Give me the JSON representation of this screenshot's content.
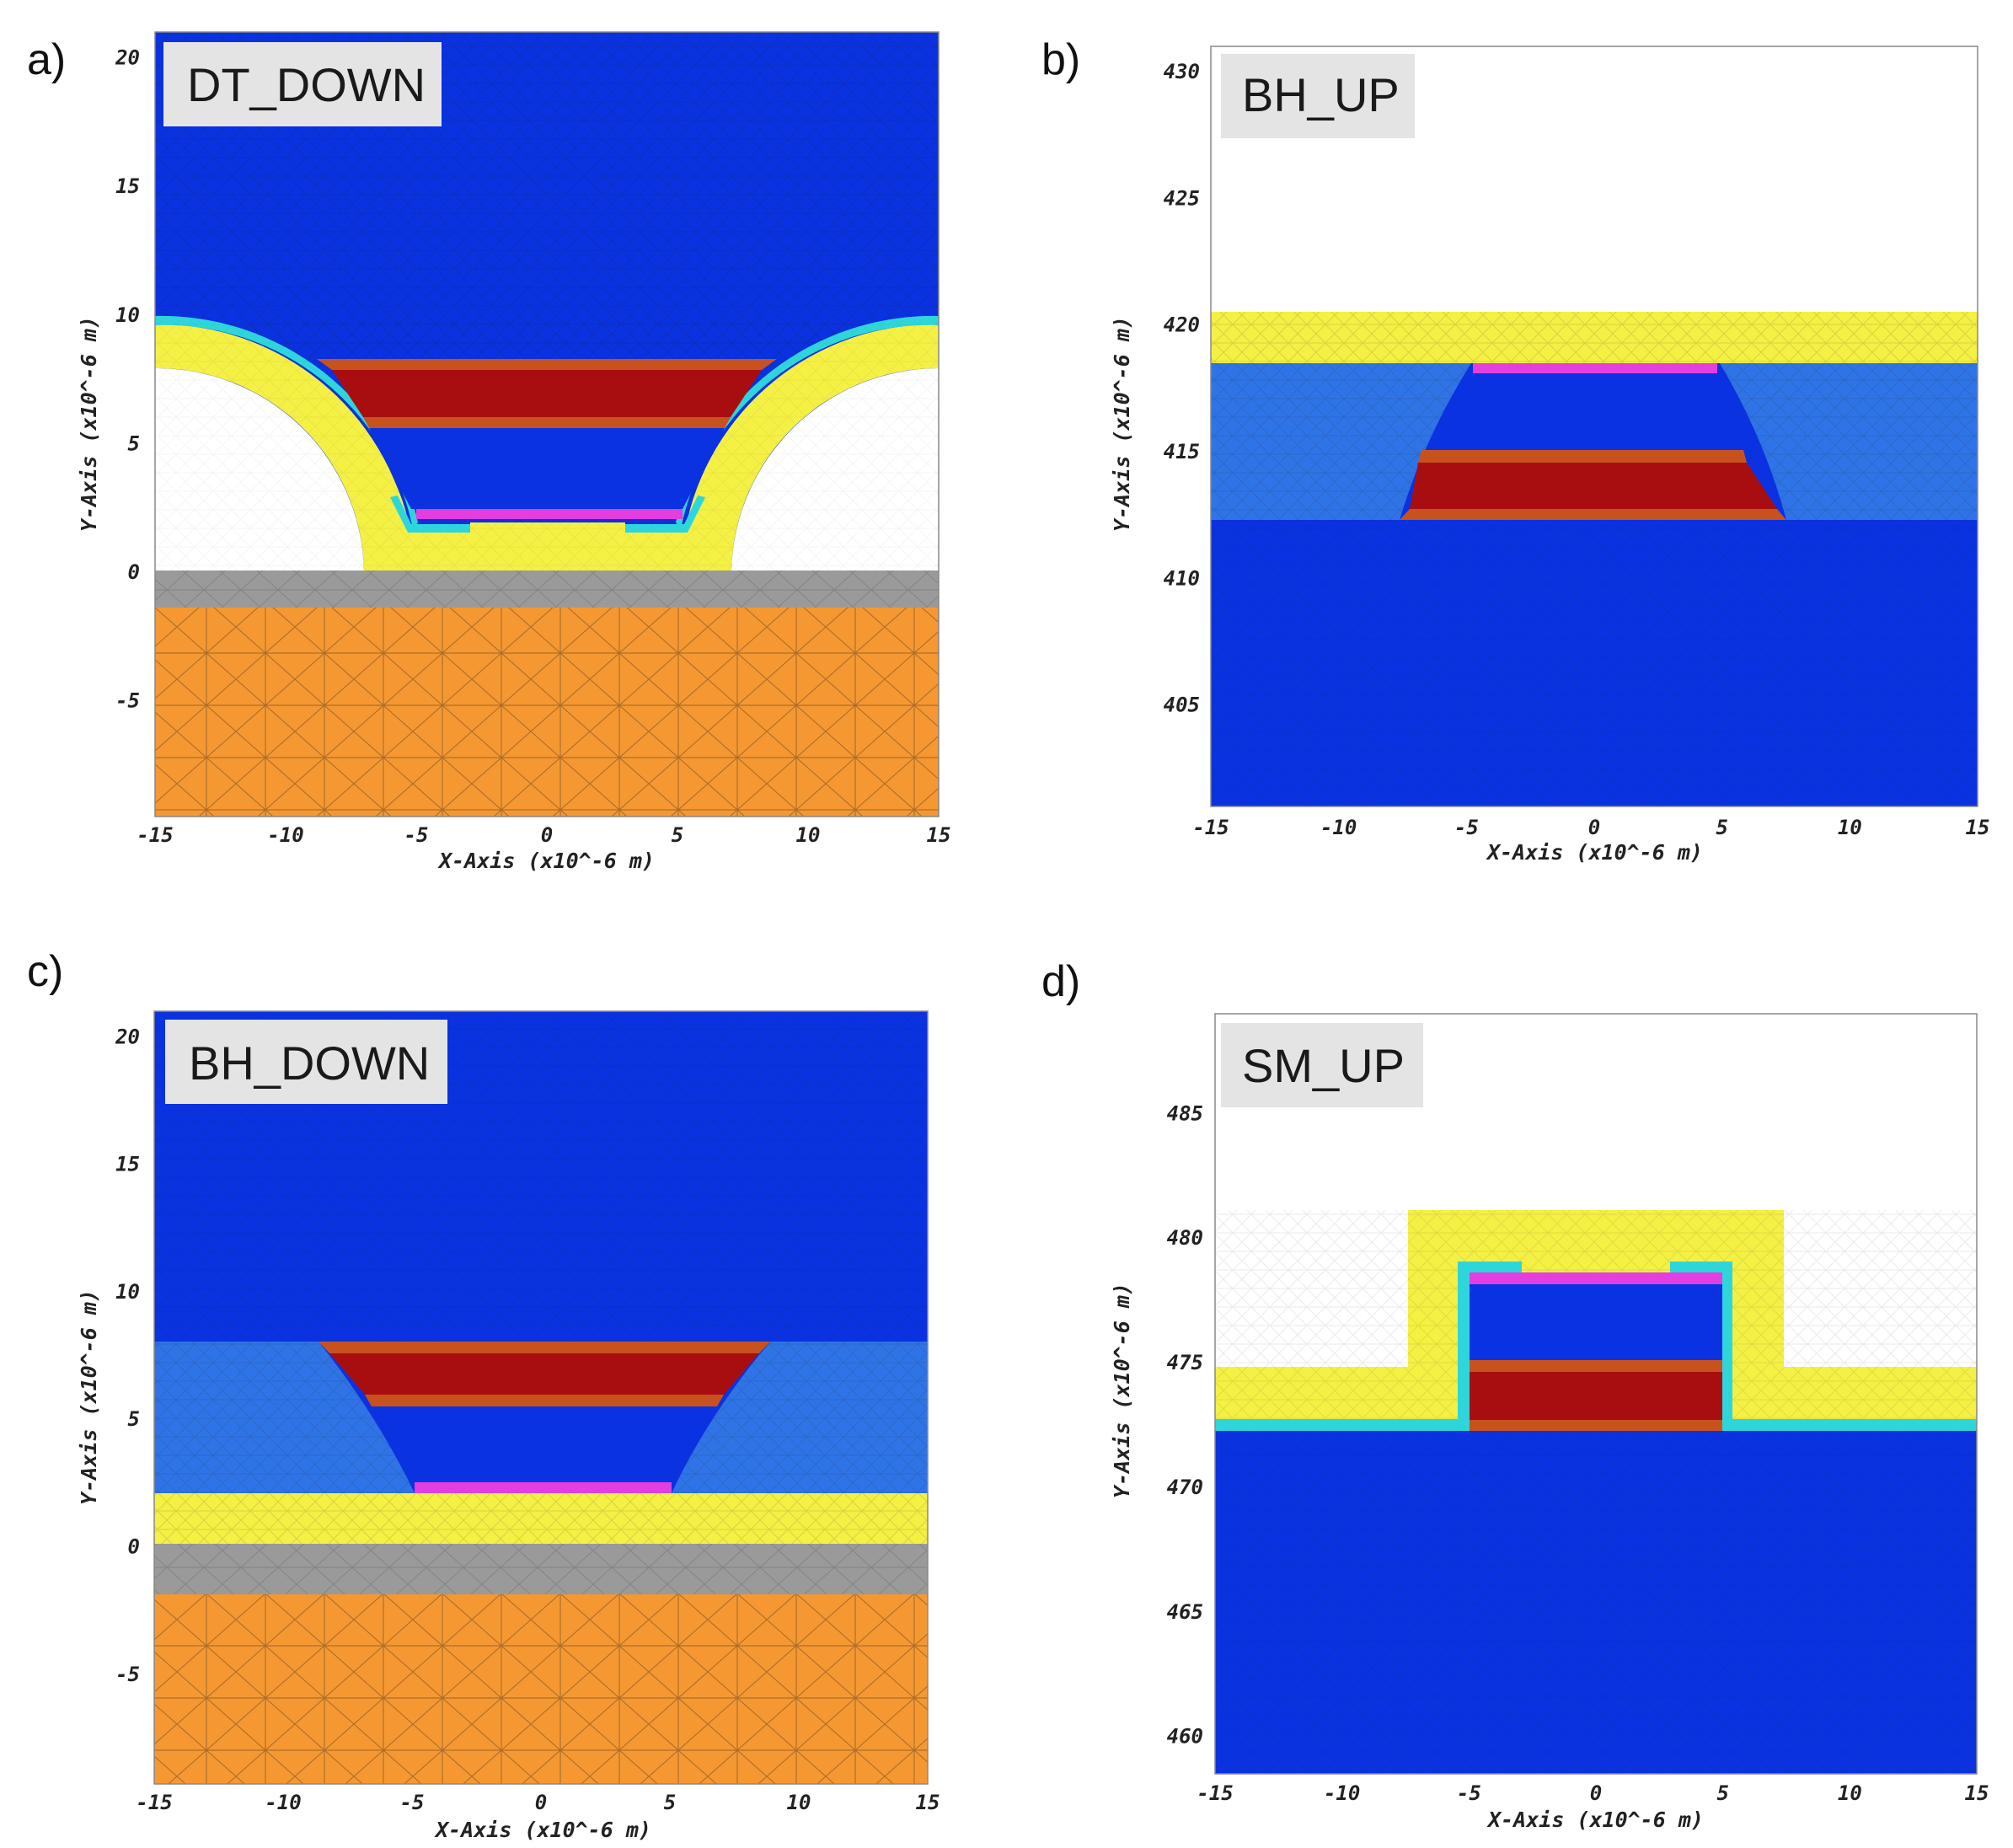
{
  "colors": {
    "cladding_blue": "#0a32e0",
    "mid_blue": "#2f74e6",
    "yellow": "#f4f044",
    "cyan": "#2ed6dc",
    "magenta": "#e23ee0",
    "red": "#a80e10",
    "brick": "#c8521e",
    "grey": "#9a9a9a",
    "orange": "#f59832",
    "tag_bg": "#e4e4e4",
    "mesh": "#1a1a1a"
  },
  "panels": [
    {
      "id": "a",
      "letter": "a)",
      "tag": "DT_DOWN",
      "xlabel": "X-Axis (x10^-6 m)",
      "ylabel": "Y-Axis (x10^-6 m)",
      "xlim": [
        -15,
        15
      ],
      "ylim": [
        -9.5,
        21
      ],
      "xticks": [
        "-15",
        "-10",
        "-5",
        "0",
        "5",
        "10",
        "15"
      ],
      "yticks": [
        "20",
        "15",
        "10",
        "5",
        "0",
        "-5"
      ]
    },
    {
      "id": "b",
      "letter": "b)",
      "tag": "BH_UP",
      "xlabel": "X-Axis (x10^-6 m)",
      "ylabel": "Y-Axis (x10^-6 m)",
      "xlim": [
        -15,
        15
      ],
      "ylim": [
        401,
        431
      ],
      "xticks": [
        "-15",
        "-10",
        "-5",
        "0",
        "5",
        "10",
        "15"
      ],
      "yticks": [
        "430",
        "425",
        "420",
        "415",
        "410",
        "405"
      ]
    },
    {
      "id": "c",
      "letter": "c)",
      "tag": "BH_DOWN",
      "xlabel": "X-Axis (x10^-6 m)",
      "ylabel": "Y-Axis (x10^-6 m)",
      "xlim": [
        -15,
        15
      ],
      "ylim": [
        -9.3,
        21
      ],
      "xticks": [
        "-15",
        "-10",
        "-5",
        "0",
        "5",
        "10",
        "15"
      ],
      "yticks": [
        "20",
        "15",
        "10",
        "5",
        "0",
        "-5"
      ]
    },
    {
      "id": "d",
      "letter": "d)",
      "tag": "SM_UP",
      "xlabel": "X-Axis (x10^-6 m)",
      "ylabel": "Y-Axis (x10^-6 m)",
      "xlim": [
        -15,
        15
      ],
      "ylim": [
        458.5,
        489
      ],
      "xticks": [
        "-15",
        "-10",
        "-5",
        "0",
        "5",
        "10",
        "15"
      ],
      "yticks": [
        "485",
        "480",
        "475",
        "470",
        "465",
        "460"
      ]
    }
  ]
}
